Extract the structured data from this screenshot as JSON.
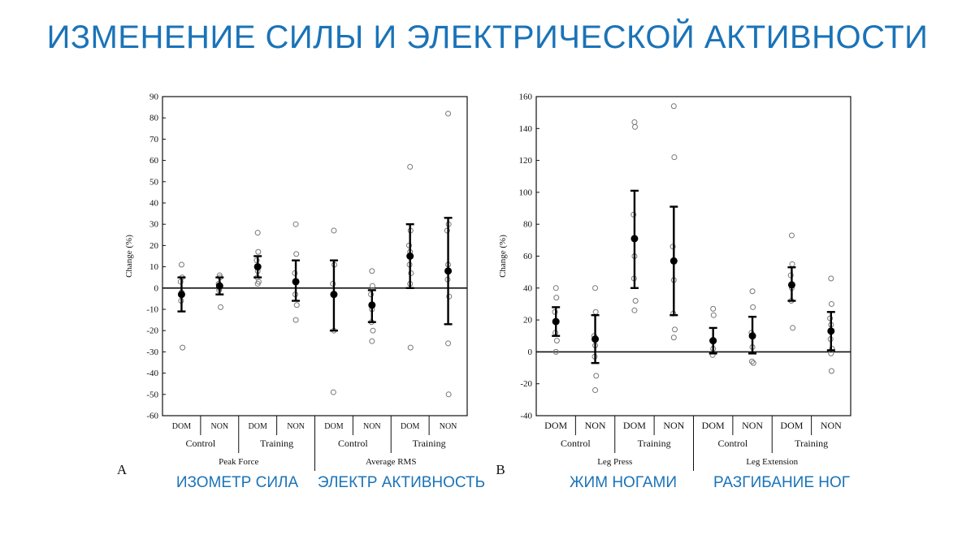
{
  "slide": {
    "title": "ИЗМЕНЕНИЕ СИЛЫ И ЭЛЕКТРИЧЕСКОЙ АКТИВНОСТИ",
    "captions": [
      "ИЗОМЕТР СИЛА",
      "ЭЛЕКТР АКТИВНОСТЬ",
      "ЖИМ НОГАМИ",
      "РАЗГИБАНИЕ НОГ"
    ],
    "accent_color": "#1a73b8"
  },
  "chart_data": [
    {
      "type": "scatter",
      "panel_letter": "A",
      "ylabel": "Change (%)",
      "ylim": [
        -60,
        90
      ],
      "yticks": [
        -60,
        -50,
        -40,
        -30,
        -20,
        -10,
        0,
        10,
        20,
        30,
        40,
        50,
        60,
        70,
        80,
        90
      ],
      "groups": [
        "Peak Force",
        "Average RMS"
      ],
      "conditions": [
        "Control",
        "Training",
        "Control",
        "Training"
      ],
      "categories": [
        "DOM",
        "NON",
        "DOM",
        "NON",
        "DOM",
        "NON",
        "DOM",
        "NON"
      ],
      "series": [
        {
          "name": "Peak Force Control DOM",
          "mean": -3,
          "low": -11,
          "high": 5,
          "points": [
            11,
            5,
            3,
            -2,
            -6,
            -28
          ]
        },
        {
          "name": "Peak Force Control NON",
          "mean": 1,
          "low": -3,
          "high": 5,
          "points": [
            6,
            5,
            2,
            0,
            -1,
            -9
          ]
        },
        {
          "name": "Peak Force Training DOM",
          "mean": 10,
          "low": 5,
          "high": 15,
          "points": [
            26,
            17,
            13,
            8,
            5,
            3,
            2
          ]
        },
        {
          "name": "Peak Force Training NON",
          "mean": 3,
          "low": -6,
          "high": 13,
          "points": [
            30,
            16,
            7,
            3,
            -3,
            -8,
            -15
          ]
        },
        {
          "name": "Average RMS Control DOM",
          "mean": -3,
          "low": -20,
          "high": 13,
          "points": [
            27,
            11,
            2,
            -20,
            -49
          ]
        },
        {
          "name": "Average RMS Control NON",
          "mean": -8,
          "low": -16,
          "high": -1,
          "points": [
            8,
            1,
            -3,
            -10,
            -16,
            -20,
            -25
          ]
        },
        {
          "name": "Average RMS Training DOM",
          "mean": 15,
          "low": 0,
          "high": 30,
          "points": [
            57,
            27,
            20,
            17,
            11,
            7,
            2,
            -28
          ]
        },
        {
          "name": "Average RMS Training NON",
          "mean": 8,
          "low": -17,
          "high": 33,
          "points": [
            82,
            30,
            27,
            11,
            4,
            -4,
            -26,
            -50
          ]
        }
      ]
    },
    {
      "type": "scatter",
      "panel_letter": "B",
      "ylabel": "Change (%)",
      "ylim": [
        -40,
        160
      ],
      "yticks": [
        -40,
        -20,
        0,
        20,
        40,
        60,
        80,
        100,
        120,
        140,
        160
      ],
      "groups": [
        "Leg Press",
        "Leg Extension"
      ],
      "conditions": [
        "Control",
        "Training",
        "Control",
        "Training"
      ],
      "categories": [
        "DOM",
        "NON",
        "DOM",
        "NON",
        "DOM",
        "NON",
        "DOM",
        "NON"
      ],
      "series": [
        {
          "name": "Leg Press Control DOM",
          "mean": 19,
          "low": 10,
          "high": 28,
          "points": [
            40,
            34,
            25,
            19,
            12,
            7,
            0
          ]
        },
        {
          "name": "Leg Press Control NON",
          "mean": 8,
          "low": -7,
          "high": 23,
          "points": [
            40,
            25,
            10,
            4,
            -3,
            -15,
            -24
          ]
        },
        {
          "name": "Leg Press Training DOM",
          "mean": 71,
          "low": 40,
          "high": 101,
          "points": [
            144,
            141,
            86,
            60,
            46,
            32,
            26
          ]
        },
        {
          "name": "Leg Press Training NON",
          "mean": 57,
          "low": 23,
          "high": 91,
          "points": [
            154,
            122,
            66,
            45,
            24,
            14,
            9
          ]
        },
        {
          "name": "Leg Extension Control DOM",
          "mean": 7,
          "low": -1,
          "high": 15,
          "points": [
            27,
            23,
            7,
            2,
            -2
          ]
        },
        {
          "name": "Leg Extension Control NON",
          "mean": 10,
          "low": -1,
          "high": 22,
          "points": [
            38,
            28,
            12,
            3,
            -6,
            -7
          ]
        },
        {
          "name": "Leg Extension Training DOM",
          "mean": 42,
          "low": 32,
          "high": 53,
          "points": [
            73,
            55,
            48,
            40,
            32,
            15
          ]
        },
        {
          "name": "Leg Extension Training NON",
          "mean": 13,
          "low": 1,
          "high": 25,
          "points": [
            46,
            30,
            21,
            17,
            8,
            2,
            -1,
            -12
          ]
        }
      ]
    }
  ]
}
